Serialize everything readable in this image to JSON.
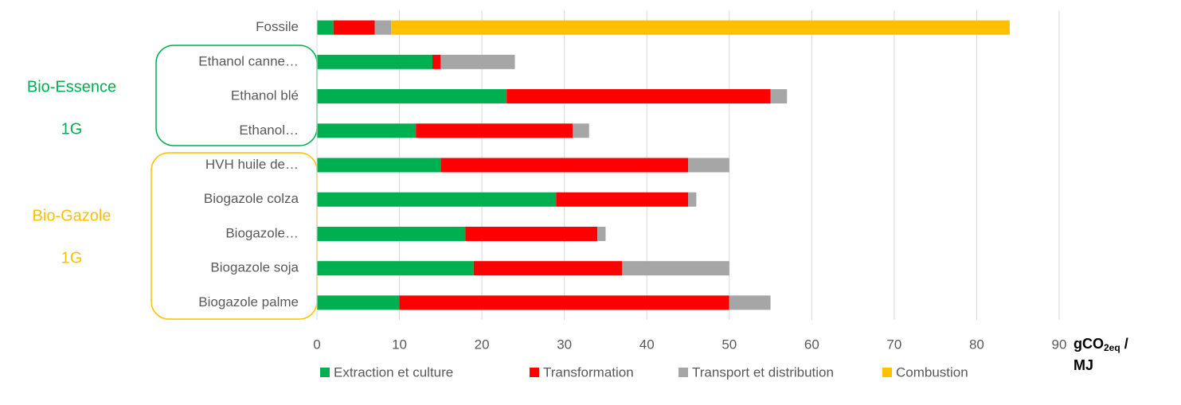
{
  "chart_data": {
    "type": "stacked_barh",
    "categories": [
      "Fossile",
      "Ethanol canne…",
      "Ethanol blé",
      "Ethanol…",
      "HVH huile de…",
      "Biogazole colza",
      "Biogazole…",
      "Biogazole soja",
      "Biogazole palme"
    ],
    "series": [
      {
        "name": "Extraction et culture",
        "color": "#00b050",
        "values": [
          2,
          14,
          23,
          12,
          15,
          29,
          18,
          19,
          10
        ]
      },
      {
        "name": "Transformation",
        "color": "#ff0000",
        "values": [
          5,
          1,
          32,
          19,
          30,
          16,
          16,
          18,
          40
        ]
      },
      {
        "name": "Transport et distribution",
        "color": "#a6a6a6",
        "values": [
          2,
          9,
          2,
          2,
          5,
          1,
          1,
          13,
          5
        ]
      },
      {
        "name": "Combustion",
        "color": "#ffc000",
        "values": [
          75,
          0,
          0,
          0,
          0,
          0,
          0,
          0,
          0
        ]
      }
    ],
    "xlim": [
      0,
      90
    ],
    "xticks": [
      0,
      10,
      20,
      30,
      40,
      50,
      60,
      70,
      80,
      90
    ],
    "grid": true,
    "legend": "bottom",
    "x_label": {
      "text": "gCO",
      "subscript": "2eq",
      "suffix": " /",
      "line2": "MJ"
    },
    "annotations": [
      {
        "text": "Bio-Essence",
        "color": "#00b050"
      },
      {
        "text": "1G",
        "color": "#00b050"
      },
      {
        "text": "Bio-Gazole",
        "color": "#ffc000"
      },
      {
        "text": "1G",
        "color": "#ffc000"
      }
    ]
  }
}
